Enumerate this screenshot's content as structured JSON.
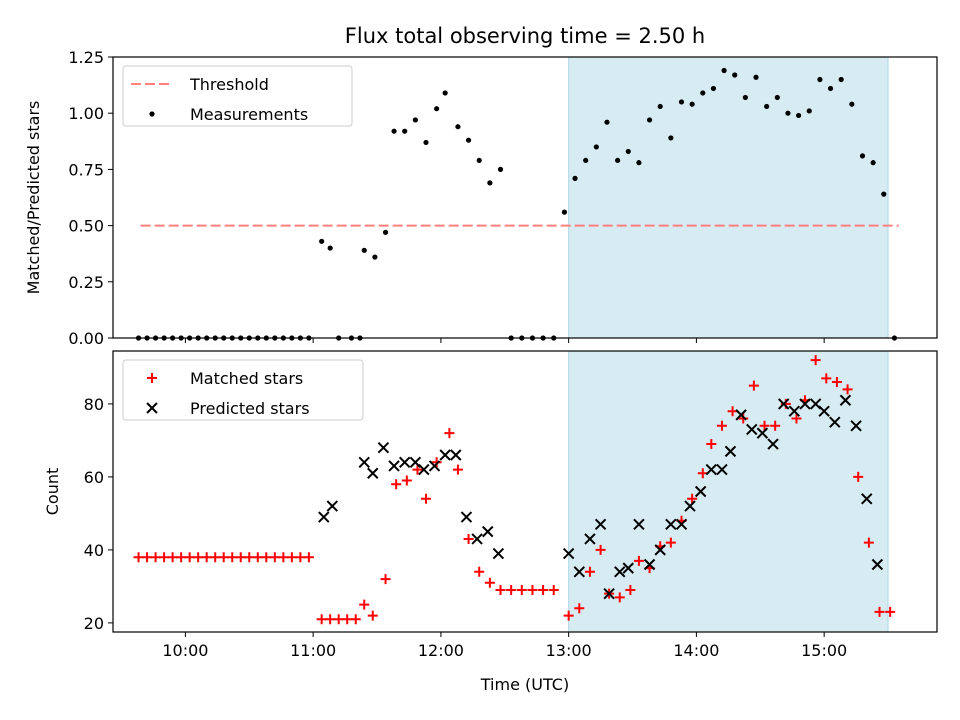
{
  "title": "Flux total observing time = 2.50 h",
  "highlight_color": "#add8e6",
  "chart_data": [
    {
      "type": "scatter",
      "title": "Flux total observing time = 2.50 h",
      "xlabel": "",
      "ylabel": "Matched/Predicted stars",
      "xlim": [
        "09:26",
        "15:53"
      ],
      "ylim": [
        0,
        1.25
      ],
      "yticks": [
        "0.00",
        "0.25",
        "0.50",
        "0.75",
        "1.00",
        "1.25"
      ],
      "highlight_span": [
        "13:00",
        "15:30"
      ],
      "legend_position": "top-left",
      "legend": [
        "Threshold",
        "Measurements"
      ],
      "series": [
        {
          "name": "Threshold",
          "kind": "dashed-line",
          "color": "#ff7f7f",
          "points": [
            [
              "09:39",
              0.5
            ],
            [
              "15:35",
              0.5
            ]
          ]
        },
        {
          "name": "Measurements",
          "kind": "dots",
          "color": "#000000",
          "points": [
            [
              "09:38",
              0
            ],
            [
              "09:42",
              0
            ],
            [
              "09:46",
              0
            ],
            [
              "09:50",
              0
            ],
            [
              "09:54",
              0
            ],
            [
              "09:58",
              0
            ],
            [
              "10:02",
              0
            ],
            [
              "10:06",
              0
            ],
            [
              "10:10",
              0
            ],
            [
              "10:14",
              0
            ],
            [
              "10:18",
              0
            ],
            [
              "10:22",
              0
            ],
            [
              "10:26",
              0
            ],
            [
              "10:30",
              0
            ],
            [
              "10:34",
              0
            ],
            [
              "10:38",
              0
            ],
            [
              "10:42",
              0
            ],
            [
              "10:46",
              0
            ],
            [
              "10:50",
              0
            ],
            [
              "10:54",
              0
            ],
            [
              "10:58",
              0
            ],
            [
              "11:04",
              0.43
            ],
            [
              "11:08",
              0.4
            ],
            [
              "11:12",
              0
            ],
            [
              "11:18",
              0
            ],
            [
              "11:22",
              0
            ],
            [
              "11:24",
              0.39
            ],
            [
              "11:29",
              0.36
            ],
            [
              "11:34",
              0.47
            ],
            [
              "11:38",
              0.92
            ],
            [
              "11:43",
              0.92
            ],
            [
              "11:48",
              0.97
            ],
            [
              "11:53",
              0.87
            ],
            [
              "11:58",
              1.02
            ],
            [
              "12:02",
              1.09
            ],
            [
              "12:08",
              0.94
            ],
            [
              "12:13",
              0.88
            ],
            [
              "12:18",
              0.79
            ],
            [
              "12:23",
              0.69
            ],
            [
              "12:28",
              0.75
            ],
            [
              "12:33",
              0
            ],
            [
              "12:38",
              0
            ],
            [
              "12:43",
              0
            ],
            [
              "12:48",
              0
            ],
            [
              "12:53",
              0
            ],
            [
              "12:58",
              0.56
            ],
            [
              "13:03",
              0.71
            ],
            [
              "13:08",
              0.79
            ],
            [
              "13:13",
              0.85
            ],
            [
              "13:18",
              0.96
            ],
            [
              "13:23",
              0.79
            ],
            [
              "13:28",
              0.83
            ],
            [
              "13:33",
              0.78
            ],
            [
              "13:38",
              0.97
            ],
            [
              "13:43",
              1.03
            ],
            [
              "13:48",
              0.89
            ],
            [
              "13:53",
              1.05
            ],
            [
              "13:58",
              1.04
            ],
            [
              "14:03",
              1.09
            ],
            [
              "14:08",
              1.11
            ],
            [
              "14:13",
              1.19
            ],
            [
              "14:18",
              1.17
            ],
            [
              "14:23",
              1.07
            ],
            [
              "14:28",
              1.16
            ],
            [
              "14:33",
              1.03
            ],
            [
              "14:38",
              1.07
            ],
            [
              "14:43",
              1.0
            ],
            [
              "14:48",
              0.99
            ],
            [
              "14:53",
              1.01
            ],
            [
              "14:58",
              1.15
            ],
            [
              "15:03",
              1.11
            ],
            [
              "15:08",
              1.15
            ],
            [
              "15:13",
              1.04
            ],
            [
              "15:18",
              0.81
            ],
            [
              "15:23",
              0.78
            ],
            [
              "15:28",
              0.64
            ],
            [
              "15:33",
              0
            ]
          ]
        }
      ]
    },
    {
      "type": "scatter",
      "title": "",
      "xlabel": "Time (UTC)",
      "ylabel": "Count",
      "xlim": [
        "09:26",
        "15:53"
      ],
      "ylim": [
        17.5,
        94.5
      ],
      "yticks": [
        "20",
        "40",
        "60",
        "80"
      ],
      "xticks": [
        "10:00",
        "11:00",
        "12:00",
        "13:00",
        "14:00",
        "15:00"
      ],
      "highlight_span": [
        "13:00",
        "15:30"
      ],
      "legend_position": "top-left",
      "legend": [
        "Matched stars",
        "Predicted stars"
      ],
      "series": [
        {
          "name": "Matched stars",
          "kind": "plus",
          "color": "#ff0000",
          "points": [
            [
              "09:38",
              38
            ],
            [
              "09:42",
              38
            ],
            [
              "09:46",
              38
            ],
            [
              "09:50",
              38
            ],
            [
              "09:54",
              38
            ],
            [
              "09:58",
              38
            ],
            [
              "10:02",
              38
            ],
            [
              "10:06",
              38
            ],
            [
              "10:10",
              38
            ],
            [
              "10:14",
              38
            ],
            [
              "10:18",
              38
            ],
            [
              "10:22",
              38
            ],
            [
              "10:26",
              38
            ],
            [
              "10:30",
              38
            ],
            [
              "10:34",
              38
            ],
            [
              "10:38",
              38
            ],
            [
              "10:42",
              38
            ],
            [
              "10:46",
              38
            ],
            [
              "10:50",
              38
            ],
            [
              "10:54",
              38
            ],
            [
              "10:58",
              38
            ],
            [
              "11:04",
              21
            ],
            [
              "11:08",
              21
            ],
            [
              "11:12",
              21
            ],
            [
              "11:16",
              21
            ],
            [
              "11:20",
              21
            ],
            [
              "11:24",
              25
            ],
            [
              "11:28",
              22
            ],
            [
              "11:34",
              32
            ],
            [
              "11:39",
              58
            ],
            [
              "11:44",
              59
            ],
            [
              "11:49",
              62
            ],
            [
              "11:53",
              54
            ],
            [
              "11:58",
              64
            ],
            [
              "12:04",
              72
            ],
            [
              "12:08",
              62
            ],
            [
              "12:13",
              43
            ],
            [
              "12:18",
              34
            ],
            [
              "12:23",
              31
            ],
            [
              "12:28",
              29
            ],
            [
              "12:33",
              29
            ],
            [
              "12:38",
              29
            ],
            [
              "12:43",
              29
            ],
            [
              "12:48",
              29
            ],
            [
              "12:53",
              29
            ],
            [
              "13:00",
              22
            ],
            [
              "13:05",
              24
            ],
            [
              "13:10",
              34
            ],
            [
              "13:15",
              40
            ],
            [
              "13:19",
              28
            ],
            [
              "13:24",
              27
            ],
            [
              "13:29",
              29
            ],
            [
              "13:33",
              37
            ],
            [
              "13:38",
              35
            ],
            [
              "13:43",
              41
            ],
            [
              "13:48",
              42
            ],
            [
              "13:53",
              48
            ],
            [
              "13:58",
              54
            ],
            [
              "14:03",
              61
            ],
            [
              "14:07",
              69
            ],
            [
              "14:12",
              74
            ],
            [
              "14:17",
              78
            ],
            [
              "14:22",
              76
            ],
            [
              "14:27",
              85
            ],
            [
              "14:32",
              74
            ],
            [
              "14:37",
              74
            ],
            [
              "14:42",
              80
            ],
            [
              "14:47",
              76
            ],
            [
              "14:51",
              81
            ],
            [
              "14:56",
              92
            ],
            [
              "15:01",
              87
            ],
            [
              "15:06",
              86
            ],
            [
              "15:11",
              84
            ],
            [
              "15:16",
              60
            ],
            [
              "15:21",
              42
            ],
            [
              "15:26",
              23
            ],
            [
              "15:31",
              23
            ]
          ]
        },
        {
          "name": "Predicted stars",
          "kind": "x",
          "color": "#000000",
          "points": [
            [
              "11:05",
              49
            ],
            [
              "11:09",
              52
            ],
            [
              "11:24",
              64
            ],
            [
              "11:28",
              61
            ],
            [
              "11:33",
              68
            ],
            [
              "11:38",
              63
            ],
            [
              "11:43",
              64
            ],
            [
              "11:48",
              64
            ],
            [
              "11:52",
              62
            ],
            [
              "11:57",
              63
            ],
            [
              "12:02",
              66
            ],
            [
              "12:07",
              66
            ],
            [
              "12:12",
              49
            ],
            [
              "12:17",
              43
            ],
            [
              "12:22",
              45
            ],
            [
              "12:27",
              39
            ],
            [
              "13:00",
              39
            ],
            [
              "13:05",
              34
            ],
            [
              "13:10",
              43
            ],
            [
              "13:15",
              47
            ],
            [
              "13:19",
              28
            ],
            [
              "13:24",
              34
            ],
            [
              "13:28",
              35
            ],
            [
              "13:33",
              47
            ],
            [
              "13:38",
              36
            ],
            [
              "13:43",
              40
            ],
            [
              "13:48",
              47
            ],
            [
              "13:53",
              47
            ],
            [
              "13:57",
              52
            ],
            [
              "14:02",
              56
            ],
            [
              "14:07",
              62
            ],
            [
              "14:12",
              62
            ],
            [
              "14:16",
              67
            ],
            [
              "14:21",
              77
            ],
            [
              "14:26",
              73
            ],
            [
              "14:31",
              72
            ],
            [
              "14:36",
              69
            ],
            [
              "14:41",
              80
            ],
            [
              "14:46",
              78
            ],
            [
              "14:51",
              80
            ],
            [
              "14:56",
              80
            ],
            [
              "15:00",
              78
            ],
            [
              "15:05",
              75
            ],
            [
              "15:10",
              81
            ],
            [
              "15:15",
              74
            ],
            [
              "15:20",
              54
            ],
            [
              "15:25",
              36
            ]
          ]
        }
      ]
    }
  ]
}
